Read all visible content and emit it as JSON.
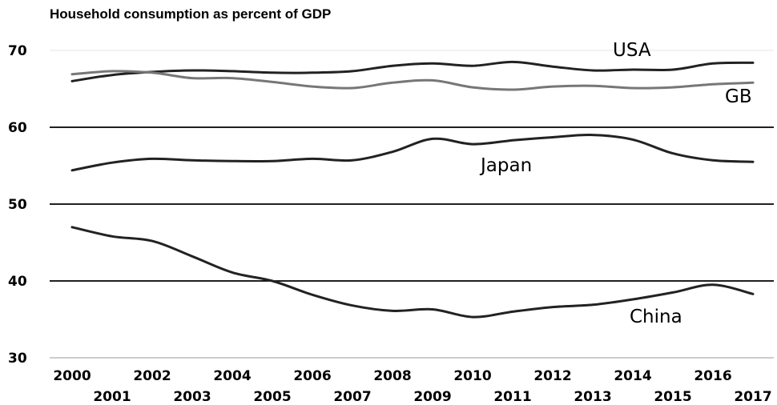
{
  "chart_data": {
    "type": "line",
    "title": "Household consumption as percent of GDP",
    "xlabel": "",
    "ylabel": "",
    "x": [
      2000,
      2001,
      2002,
      2003,
      2004,
      2005,
      2006,
      2007,
      2008,
      2009,
      2010,
      2011,
      2012,
      2013,
      2014,
      2015,
      2016,
      2017
    ],
    "x_tick_labels": [
      "2000",
      "2001",
      "2002",
      "2003",
      "2004",
      "2005",
      "2006",
      "2007",
      "2008",
      "2009",
      "2010",
      "2011",
      "2012",
      "2013",
      "2014",
      "2015",
      "2016",
      "2017"
    ],
    "ylim": [
      30,
      70
    ],
    "y_ticks": [
      30,
      40,
      50,
      60,
      70
    ],
    "y_tick_labels": [
      "30",
      "40",
      "50",
      "60",
      "70"
    ],
    "grid": "horizontal",
    "series": [
      {
        "name": "USA",
        "color": "#222222",
        "values": [
          66.0,
          66.8,
          67.2,
          67.4,
          67.3,
          67.1,
          67.1,
          67.3,
          68.0,
          68.3,
          68.0,
          68.5,
          67.9,
          67.4,
          67.5,
          67.5,
          68.3,
          68.4
        ]
      },
      {
        "name": "GB",
        "color": "#777777",
        "values": [
          66.9,
          67.3,
          67.1,
          66.4,
          66.4,
          65.9,
          65.3,
          65.1,
          65.8,
          66.1,
          65.2,
          64.9,
          65.3,
          65.4,
          65.1,
          65.2,
          65.6,
          65.8
        ]
      },
      {
        "name": "Japan",
        "color": "#222222",
        "values": [
          54.4,
          55.4,
          55.9,
          55.7,
          55.6,
          55.6,
          55.9,
          55.7,
          56.8,
          58.5,
          57.8,
          58.3,
          58.7,
          59.0,
          58.4,
          56.6,
          55.7,
          55.5
        ]
      },
      {
        "name": "China",
        "color": "#222222",
        "values": [
          47.0,
          45.8,
          45.2,
          43.2,
          41.1,
          40.0,
          38.2,
          36.8,
          36.1,
          36.3,
          35.3,
          36.0,
          36.6,
          36.9,
          37.6,
          38.5,
          39.5,
          38.3
        ]
      }
    ]
  }
}
